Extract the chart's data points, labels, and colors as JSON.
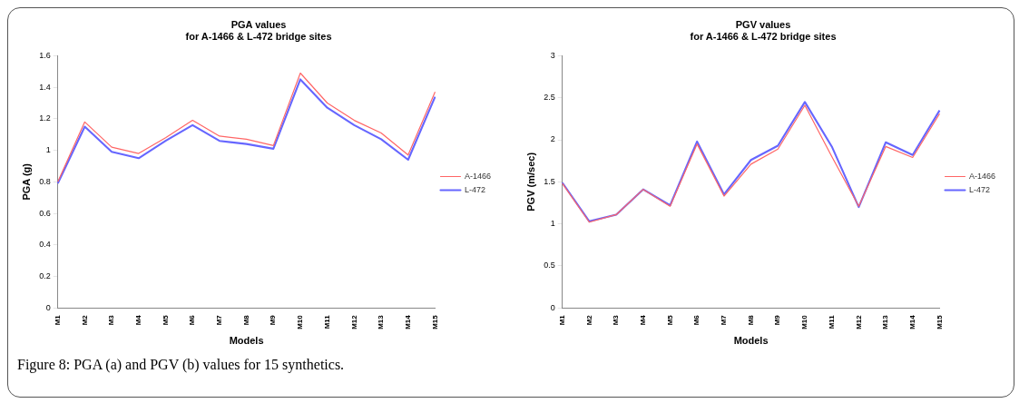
{
  "chart_data": [
    {
      "type": "line",
      "title": "PGA values",
      "subtitle": "for A-1466 & L-472 bridge sites",
      "xlabel": "Models",
      "ylabel": "PGA (g)",
      "categories": [
        "M1",
        "M2",
        "M3",
        "M4",
        "M5",
        "M6",
        "M7",
        "M8",
        "M9",
        "M10",
        "M11",
        "M12",
        "M13",
        "M14",
        "M15"
      ],
      "series": [
        {
          "name": "A-1466",
          "color": "#ff6666",
          "values": [
            0.8,
            1.18,
            1.02,
            0.98,
            1.08,
            1.19,
            1.09,
            1.07,
            1.03,
            1.49,
            1.3,
            1.19,
            1.11,
            0.97,
            1.37
          ]
        },
        {
          "name": "L-472",
          "color": "#6666ff",
          "values": [
            0.79,
            1.15,
            0.99,
            0.95,
            1.06,
            1.16,
            1.06,
            1.04,
            1.01,
            1.45,
            1.27,
            1.16,
            1.07,
            0.94,
            1.34
          ]
        }
      ],
      "ylim": [
        0,
        1.6
      ],
      "yticks": [
        0,
        0.2,
        0.4,
        0.6,
        0.8,
        1,
        1.2,
        1.4,
        1.6
      ],
      "grid": false,
      "legend": "right",
      "marker": "none",
      "line_style": "solid",
      "annotations": [
        "Figure 8: PGA (a) and PGV (b) values for 15 synthetics."
      ]
    },
    {
      "type": "line",
      "title": "PGV values",
      "subtitle": "for A-1466 & L-472 bridge sites",
      "xlabel": "Models",
      "ylabel": "PGV (m/sec)",
      "categories": [
        "M1",
        "M2",
        "M3",
        "M4",
        "M5",
        "M6",
        "M7",
        "M8",
        "M9",
        "M10",
        "M11",
        "M12",
        "M13",
        "M14",
        "M15"
      ],
      "series": [
        {
          "name": "A-1466",
          "color": "#ff6666",
          "values": [
            1.48,
            1.02,
            1.11,
            1.41,
            1.21,
            1.95,
            1.33,
            1.71,
            1.89,
            2.41,
            1.8,
            1.21,
            1.92,
            1.79,
            2.31
          ]
        },
        {
          "name": "L-472",
          "color": "#6666ff",
          "values": [
            1.49,
            1.03,
            1.11,
            1.41,
            1.22,
            1.98,
            1.35,
            1.76,
            1.93,
            2.45,
            1.92,
            1.2,
            1.97,
            1.82,
            2.35
          ]
        }
      ],
      "ylim": [
        0,
        3
      ],
      "yticks": [
        0,
        0.5,
        1,
        1.5,
        2,
        2.5,
        3
      ],
      "grid": false,
      "legend": "right",
      "marker": "none",
      "line_style": "solid"
    }
  ]
}
